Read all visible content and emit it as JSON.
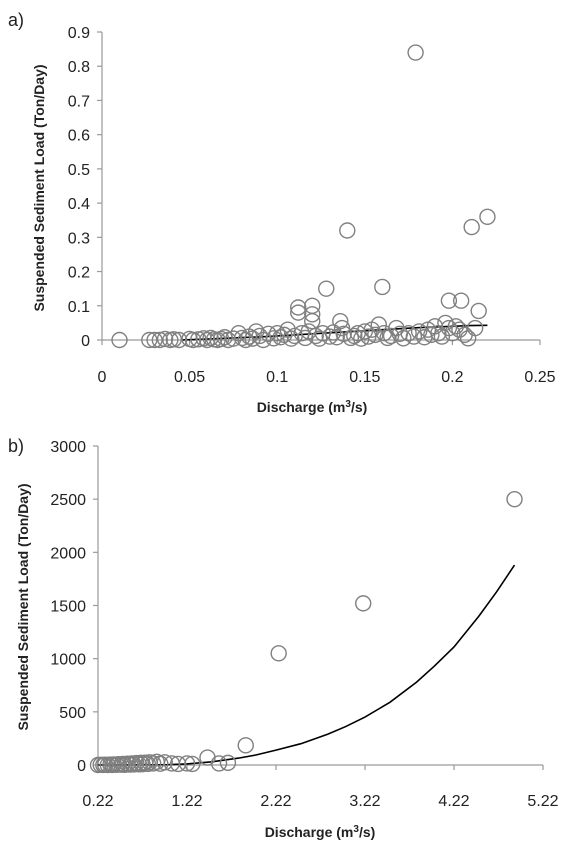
{
  "chart_data": [
    {
      "type": "scatter",
      "panel_label": "a)",
      "xlabel_main": "Discharge (m",
      "xlabel_sup": "3",
      "xlabel_tail": "/s)",
      "ylabel": "Suspended Sediment Load (Ton/Day)",
      "xlim": [
        0,
        0.25
      ],
      "ylim": [
        0,
        0.9
      ],
      "x_ticks": [
        "0",
        "0.05",
        "0.1",
        "0.15",
        "0.2",
        "0.25"
      ],
      "y_ticks": [
        "0",
        "0.1",
        "0.2",
        "0.3",
        "0.4",
        "0.5",
        "0.6",
        "0.7",
        "0.8",
        "0.9"
      ],
      "grid": false,
      "marker_color": "#808080",
      "line_color": "#000000",
      "points": [
        [
          0.01,
          0.0
        ],
        [
          0.027,
          0.0
        ],
        [
          0.03,
          0.0
        ],
        [
          0.033,
          0.0
        ],
        [
          0.036,
          0.003
        ],
        [
          0.039,
          0.0
        ],
        [
          0.041,
          0.002
        ],
        [
          0.044,
          0.0
        ],
        [
          0.05,
          0.003
        ],
        [
          0.052,
          0.0
        ],
        [
          0.055,
          0.002
        ],
        [
          0.058,
          0.005
        ],
        [
          0.06,
          0.0
        ],
        [
          0.062,
          0.006
        ],
        [
          0.064,
          0.002
        ],
        [
          0.066,
          0.0
        ],
        [
          0.068,
          0.003
        ],
        [
          0.07,
          0.008
        ],
        [
          0.072,
          0.0
        ],
        [
          0.075,
          0.004
        ],
        [
          0.078,
          0.02
        ],
        [
          0.08,
          0.006
        ],
        [
          0.082,
          0.0
        ],
        [
          0.084,
          0.01
        ],
        [
          0.086,
          0.004
        ],
        [
          0.088,
          0.025
        ],
        [
          0.09,
          0.012
        ],
        [
          0.092,
          0.0
        ],
        [
          0.095,
          0.018
        ],
        [
          0.098,
          0.005
        ],
        [
          0.1,
          0.02
        ],
        [
          0.102,
          0.008
        ],
        [
          0.104,
          0.015
        ],
        [
          0.106,
          0.03
        ],
        [
          0.108,
          0.004
        ],
        [
          0.11,
          0.012
        ],
        [
          0.112,
          0.08
        ],
        [
          0.112,
          0.095
        ],
        [
          0.114,
          0.02
        ],
        [
          0.116,
          0.006
        ],
        [
          0.118,
          0.025
        ],
        [
          0.12,
          0.1
        ],
        [
          0.12,
          0.075
        ],
        [
          0.12,
          0.055
        ],
        [
          0.122,
          0.012
        ],
        [
          0.124,
          0.004
        ],
        [
          0.126,
          0.02
        ],
        [
          0.128,
          0.15
        ],
        [
          0.13,
          0.01
        ],
        [
          0.132,
          0.022
        ],
        [
          0.134,
          0.008
        ],
        [
          0.136,
          0.055
        ],
        [
          0.137,
          0.035
        ],
        [
          0.138,
          0.018
        ],
        [
          0.14,
          0.32
        ],
        [
          0.142,
          0.006
        ],
        [
          0.144,
          0.012
        ],
        [
          0.146,
          0.02
        ],
        [
          0.148,
          0.004
        ],
        [
          0.15,
          0.025
        ],
        [
          0.152,
          0.01
        ],
        [
          0.154,
          0.03
        ],
        [
          0.156,
          0.015
        ],
        [
          0.158,
          0.045
        ],
        [
          0.16,
          0.155
        ],
        [
          0.161,
          0.02
        ],
        [
          0.163,
          0.006
        ],
        [
          0.165,
          0.012
        ],
        [
          0.168,
          0.035
        ],
        [
          0.17,
          0.018
        ],
        [
          0.172,
          0.005
        ],
        [
          0.175,
          0.02
        ],
        [
          0.178,
          0.01
        ],
        [
          0.179,
          0.84
        ],
        [
          0.181,
          0.025
        ],
        [
          0.184,
          0.008
        ],
        [
          0.186,
          0.03
        ],
        [
          0.188,
          0.015
        ],
        [
          0.19,
          0.04
        ],
        [
          0.192,
          0.02
        ],
        [
          0.194,
          0.01
        ],
        [
          0.196,
          0.05
        ],
        [
          0.198,
          0.035
        ],
        [
          0.198,
          0.115
        ],
        [
          0.2,
          0.02
        ],
        [
          0.202,
          0.04
        ],
        [
          0.204,
          0.03
        ],
        [
          0.205,
          0.115
        ],
        [
          0.207,
          0.015
        ],
        [
          0.209,
          0.005
        ],
        [
          0.211,
          0.33
        ],
        [
          0.213,
          0.035
        ],
        [
          0.215,
          0.085
        ],
        [
          0.22,
          0.36
        ]
      ],
      "trend": [
        [
          0.045,
          0.0
        ],
        [
          0.05,
          0.001
        ],
        [
          0.06,
          0.003
        ],
        [
          0.07,
          0.005
        ],
        [
          0.08,
          0.007
        ],
        [
          0.09,
          0.009
        ],
        [
          0.1,
          0.012
        ],
        [
          0.11,
          0.015
        ],
        [
          0.12,
          0.018
        ],
        [
          0.13,
          0.021
        ],
        [
          0.14,
          0.024
        ],
        [
          0.15,
          0.027
        ],
        [
          0.16,
          0.03
        ],
        [
          0.17,
          0.033
        ],
        [
          0.18,
          0.036
        ],
        [
          0.19,
          0.038
        ],
        [
          0.2,
          0.04
        ],
        [
          0.21,
          0.042
        ],
        [
          0.22,
          0.043
        ]
      ]
    },
    {
      "type": "scatter",
      "panel_label": "b)",
      "xlabel_main": "Discharge (m",
      "xlabel_sup": "3",
      "xlabel_tail": "/s)",
      "ylabel": "Suspended Sediment Load (Ton/Day)",
      "xlim": [
        0.22,
        5.22
      ],
      "ylim": [
        0,
        3000
      ],
      "x_ticks": [
        "0.22",
        "1.22",
        "2.22",
        "3.22",
        "4.22",
        "5.22"
      ],
      "y_ticks": [
        "0",
        "500",
        "1000",
        "1500",
        "2000",
        "2500",
        "3000"
      ],
      "grid": false,
      "marker_color": "#808080",
      "line_color": "#000000",
      "points": [
        [
          0.22,
          0
        ],
        [
          0.25,
          2
        ],
        [
          0.28,
          1
        ],
        [
          0.3,
          3
        ],
        [
          0.33,
          0
        ],
        [
          0.36,
          4
        ],
        [
          0.38,
          1
        ],
        [
          0.4,
          5
        ],
        [
          0.43,
          2
        ],
        [
          0.45,
          8
        ],
        [
          0.48,
          3
        ],
        [
          0.5,
          10
        ],
        [
          0.52,
          2
        ],
        [
          0.55,
          12
        ],
        [
          0.58,
          4
        ],
        [
          0.6,
          15
        ],
        [
          0.62,
          5
        ],
        [
          0.65,
          18
        ],
        [
          0.68,
          6
        ],
        [
          0.7,
          20
        ],
        [
          0.72,
          8
        ],
        [
          0.75,
          22
        ],
        [
          0.78,
          10
        ],
        [
          0.8,
          25
        ],
        [
          0.84,
          15
        ],
        [
          0.88,
          30
        ],
        [
          0.92,
          12
        ],
        [
          0.97,
          25
        ],
        [
          1.05,
          15
        ],
        [
          1.12,
          10
        ],
        [
          1.22,
          15
        ],
        [
          1.28,
          10
        ],
        [
          1.45,
          70
        ],
        [
          1.58,
          15
        ],
        [
          1.68,
          20
        ],
        [
          1.88,
          185
        ],
        [
          2.25,
          1050
        ],
        [
          3.2,
          1520
        ],
        [
          4.9,
          2500
        ]
      ],
      "trend": [
        [
          0.22,
          0
        ],
        [
          1.0,
          3
        ],
        [
          1.22,
          10
        ],
        [
          1.5,
          30
        ],
        [
          1.8,
          65
        ],
        [
          2.0,
          95
        ],
        [
          2.22,
          140
        ],
        [
          2.5,
          200
        ],
        [
          2.8,
          290
        ],
        [
          3.0,
          360
        ],
        [
          3.22,
          450
        ],
        [
          3.5,
          590
        ],
        [
          3.8,
          780
        ],
        [
          4.0,
          930
        ],
        [
          4.22,
          1110
        ],
        [
          4.5,
          1400
        ],
        [
          4.7,
          1630
        ],
        [
          4.9,
          1880
        ]
      ]
    }
  ]
}
